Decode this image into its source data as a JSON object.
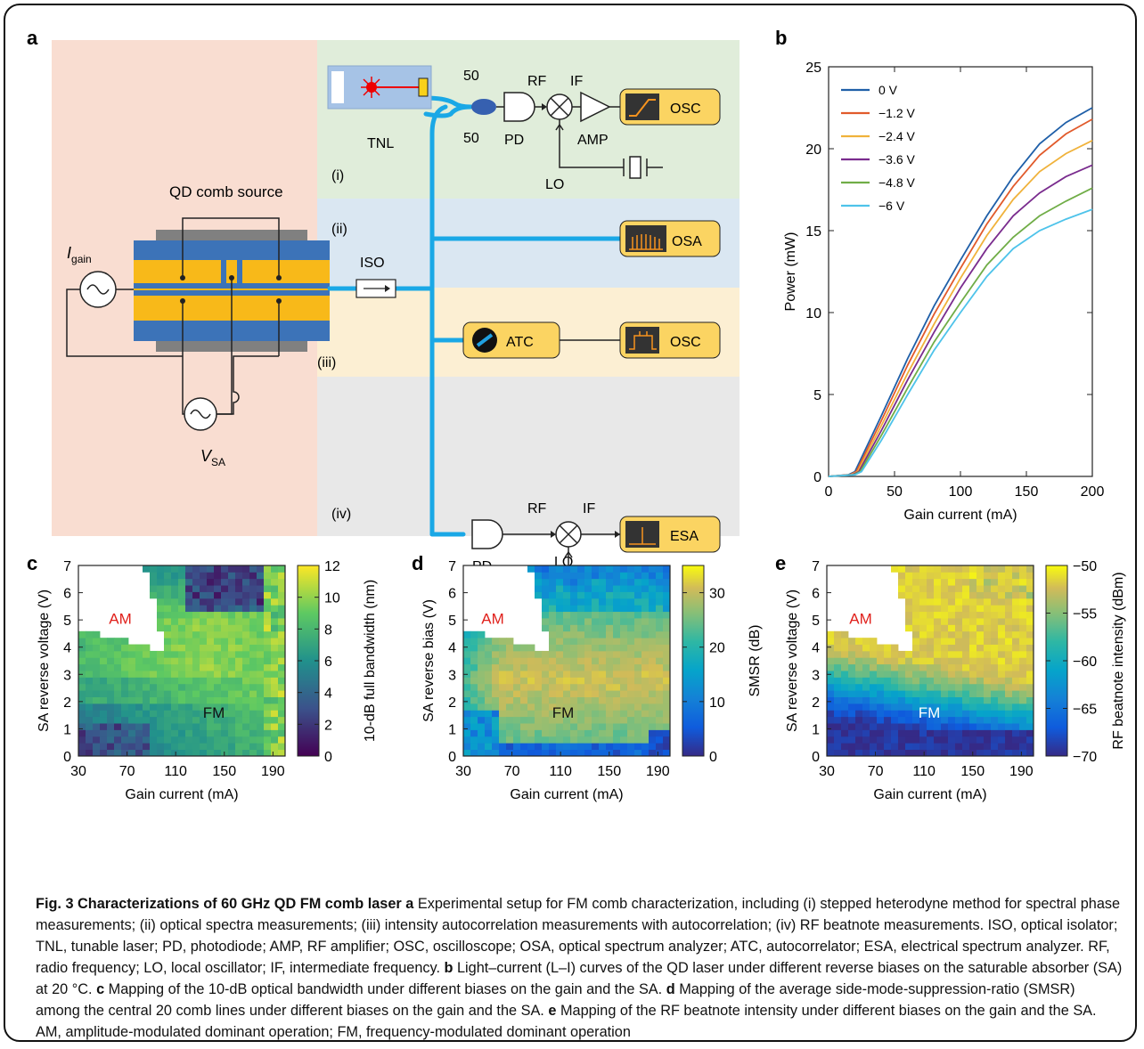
{
  "panels": {
    "a": {
      "letter": "a",
      "qd_comb_source": "QD comb source",
      "i_gain_main": "I",
      "i_gain_sub": "gain",
      "v_sa_main": "V",
      "v_sa_sub": "SA",
      "iso": "ISO",
      "tnl": "TNL",
      "split_top": "50",
      "split_bottom": "50",
      "rf_top": "RF",
      "if_top": "IF",
      "pd_top": "PD",
      "amp": "AMP",
      "lo_top": "LO",
      "osc_top": "OSC",
      "osa": "OSA",
      "atc": "ATC",
      "osc_mid": "OSC",
      "rf_bottom": "RF",
      "if_bottom": "IF",
      "pd_bottom": "PD",
      "lo_bottom": "LO",
      "esa": "ESA",
      "section_labels": [
        "(i)",
        "(ii)",
        "(iii)",
        "(iv)"
      ],
      "colors": {
        "left_bg": "#f9ddd1",
        "sec_i": "#e0edda",
        "sec_ii": "#dae7f2",
        "sec_iii": "#fcefd3",
        "sec_iv": "#e8e8e8",
        "fiber": "#1aa8e6",
        "box": "#fbd462",
        "chip": "#f8b919",
        "chip_blue": "#3c73b8"
      }
    },
    "b": {
      "letter": "b",
      "chart_data": {
        "type": "line",
        "xlabel": "Gain current (mA)",
        "ylabel": "Power (mW)",
        "xlim": [
          0,
          200
        ],
        "ylim": [
          0,
          25
        ],
        "xticks": [
          "0",
          "50",
          "100",
          "150",
          "200"
        ],
        "yticks": [
          "0",
          "5",
          "10",
          "15",
          "20",
          "25"
        ],
        "legend_position": "top-left",
        "series": [
          {
            "name": "0 V",
            "color": "#1f5fa8",
            "points": [
              [
                0,
                0
              ],
              [
                15,
                0.1
              ],
              [
                20,
                0.3
              ],
              [
                40,
                3.7
              ],
              [
                60,
                7.2
              ],
              [
                80,
                10.4
              ],
              [
                100,
                13.2
              ],
              [
                120,
                15.9
              ],
              [
                140,
                18.3
              ],
              [
                160,
                20.3
              ],
              [
                180,
                21.6
              ],
              [
                200,
                22.5
              ]
            ]
          },
          {
            "name": "−1.2 V",
            "color": "#e15a2b",
            "points": [
              [
                0,
                0
              ],
              [
                16,
                0.1
              ],
              [
                21,
                0.3
              ],
              [
                40,
                3.4
              ],
              [
                60,
                6.8
              ],
              [
                80,
                9.9
              ],
              [
                100,
                12.7
              ],
              [
                120,
                15.4
              ],
              [
                140,
                17.7
              ],
              [
                160,
                19.6
              ],
              [
                180,
                20.9
              ],
              [
                200,
                21.8
              ]
            ]
          },
          {
            "name": "−2.4 V",
            "color": "#f0b23b",
            "points": [
              [
                0,
                0
              ],
              [
                17,
                0.1
              ],
              [
                22,
                0.3
              ],
              [
                40,
                3.1
              ],
              [
                60,
                6.3
              ],
              [
                80,
                9.3
              ],
              [
                100,
                12.1
              ],
              [
                120,
                14.7
              ],
              [
                140,
                16.9
              ],
              [
                160,
                18.6
              ],
              [
                180,
                19.7
              ],
              [
                200,
                20.5
              ]
            ]
          },
          {
            "name": "−3.6 V",
            "color": "#7a2c8e",
            "points": [
              [
                0,
                0
              ],
              [
                18,
                0.1
              ],
              [
                23,
                0.3
              ],
              [
                40,
                2.8
              ],
              [
                60,
                5.9
              ],
              [
                80,
                8.8
              ],
              [
                100,
                11.5
              ],
              [
                120,
                13.9
              ],
              [
                140,
                15.9
              ],
              [
                160,
                17.3
              ],
              [
                180,
                18.3
              ],
              [
                200,
                19.0
              ]
            ]
          },
          {
            "name": "−4.8 V",
            "color": "#70ad47",
            "points": [
              [
                0,
                0
              ],
              [
                19,
                0.1
              ],
              [
                24,
                0.3
              ],
              [
                40,
                2.5
              ],
              [
                60,
                5.4
              ],
              [
                80,
                8.2
              ],
              [
                100,
                10.6
              ],
              [
                120,
                12.9
              ],
              [
                140,
                14.6
              ],
              [
                160,
                15.9
              ],
              [
                180,
                16.8
              ],
              [
                200,
                17.6
              ]
            ]
          },
          {
            "name": "−6 V",
            "color": "#4ec3ea",
            "points": [
              [
                0,
                0
              ],
              [
                20,
                0.1
              ],
              [
                25,
                0.3
              ],
              [
                40,
                2.2
              ],
              [
                60,
                5.0
              ],
              [
                80,
                7.7
              ],
              [
                100,
                10.0
              ],
              [
                120,
                12.2
              ],
              [
                140,
                13.9
              ],
              [
                160,
                15.0
              ],
              [
                180,
                15.7
              ],
              [
                200,
                16.3
              ]
            ]
          }
        ]
      }
    },
    "c": {
      "letter": "c",
      "chart_data": {
        "type": "heatmap",
        "xlabel": "Gain current (mA)",
        "ylabel": "SA reverse voltage (V)",
        "colorbar_label": "10-dB full bandwidth (nm)",
        "colorbar_ticks": [
          "0",
          "2",
          "4",
          "6",
          "8",
          "10",
          "12"
        ],
        "clim": [
          0,
          12
        ],
        "xticks": [
          "30",
          "70",
          "110",
          "150",
          "190"
        ],
        "yticks": [
          "0",
          "1",
          "2",
          "3",
          "4",
          "5",
          "6",
          "7"
        ],
        "xlim": [
          30,
          200
        ],
        "ylim": [
          0,
          7
        ],
        "annotations": [
          {
            "text": "AM",
            "color": "#e0201b"
          },
          {
            "text": "FM",
            "color": "#111111"
          }
        ]
      }
    },
    "d": {
      "letter": "d",
      "chart_data": {
        "type": "heatmap",
        "xlabel": "Gain current (mA)",
        "ylabel": "SA reverse bias (V)",
        "colorbar_label": "SMSR (dB)",
        "colorbar_ticks": [
          "0",
          "10",
          "20",
          "30"
        ],
        "clim": [
          0,
          35
        ],
        "xticks": [
          "30",
          "70",
          "110",
          "150",
          "190"
        ],
        "yticks": [
          "0",
          "1",
          "2",
          "3",
          "4",
          "5",
          "6",
          "7"
        ],
        "xlim": [
          30,
          200
        ],
        "ylim": [
          0,
          7
        ],
        "annotations": [
          {
            "text": "AM",
            "color": "#e0201b"
          },
          {
            "text": "FM",
            "color": "#111111"
          }
        ]
      }
    },
    "e": {
      "letter": "e",
      "chart_data": {
        "type": "heatmap",
        "xlabel": "Gain current (mA)",
        "ylabel": "SA reverse voltage (V)",
        "colorbar_label": "RF beatnote intensity (dBm)",
        "colorbar_ticks": [
          "−70",
          "−65",
          "−60",
          "−55",
          "−50"
        ],
        "clim": [
          -70,
          -50
        ],
        "xticks": [
          "30",
          "70",
          "110",
          "150",
          "190"
        ],
        "yticks": [
          "0",
          "1",
          "2",
          "3",
          "4",
          "5",
          "6",
          "7"
        ],
        "xlim": [
          30,
          200
        ],
        "ylim": [
          0,
          7
        ],
        "annotations": [
          {
            "text": "AM",
            "color": "#e0201b"
          },
          {
            "text": "FM",
            "color": "#ffffff"
          }
        ]
      }
    }
  },
  "caption": {
    "title": "Fig. 3 Characterizations of 60 GHz QD FM comb laser",
    "a_letter": "a",
    "a_text": "Experimental setup for FM comb characterization, including (i) stepped heterodyne method for spectral phase measurements; (ii) optical spectra measurements; (iii) intensity autocorrelation measurements with autocorrelation; (iv) RF beatnote measurements. ISO, optical isolator; TNL, tunable laser; PD, photodiode; AMP, RF amplifier; OSC, oscilloscope; OSA, optical spectrum analyzer; ATC, autocorrelator; ESA, electrical spectrum analyzer. RF, radio frequency; LO, local oscillator; IF, intermediate frequency.",
    "b_letter": "b",
    "b_text": "Light–current (L–I) curves of the QD laser under different reverse biases on the saturable absorber (SA) at 20 °C.",
    "c_letter": "c",
    "c_text": "Mapping of the 10-dB optical bandwidth under different biases on the gain and the SA.",
    "d_letter": "d",
    "d_text": "Mapping of the average side-mode-suppression-ratio (SMSR) among the central 20 comb lines under different biases on the gain and the SA.",
    "e_letter": "e",
    "e_text": "Mapping of the RF beatnote intensity under different biases on the gain and the SA. AM, amplitude-modulated dominant operation; FM, frequency-modulated dominant operation"
  }
}
